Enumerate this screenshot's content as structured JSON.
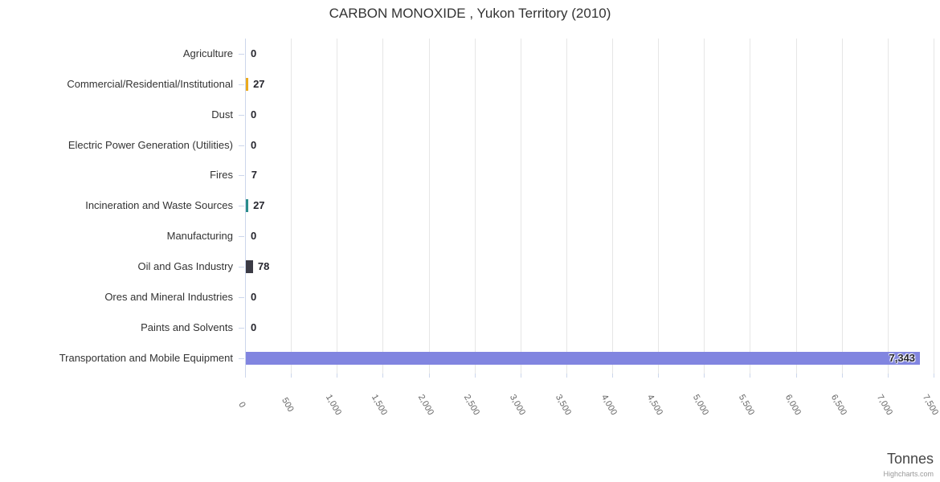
{
  "chart_data": {
    "type": "bar",
    "orientation": "horizontal",
    "title": "CARBON MONOXIDE , Yukon Territory (2010)",
    "categories": [
      "Agriculture",
      "Commercial/Residential/Institutional",
      "Dust",
      "Electric Power Generation (Utilities)",
      "Fires",
      "Incineration and Waste Sources",
      "Manufacturing",
      "Oil and Gas Industry",
      "Ores and Mineral Industries",
      "Paints and Solvents",
      "Transportation and Mobile Equipment"
    ],
    "values": [
      0,
      27,
      0,
      0,
      7,
      27,
      0,
      78,
      0,
      0,
      7343
    ],
    "value_labels": [
      "0",
      "27",
      "0",
      "0",
      "7",
      "27",
      "0",
      "78",
      "0",
      "0",
      "7,343"
    ],
    "bar_colors": [
      null,
      "#EBAA1E",
      null,
      null,
      null,
      "#2B8C8C",
      null,
      "#3B3B45",
      null,
      null,
      "#8185E0"
    ],
    "xlabel": "Tonnes",
    "xlim": [
      0,
      7500
    ],
    "tick_interval": 500,
    "x_tick_labels": [
      "0",
      "500",
      "1,000",
      "1,500",
      "2,000",
      "2,500",
      "3,000",
      "3,500",
      "4,000",
      "4,500",
      "5,000",
      "5,500",
      "6,000",
      "6,500",
      "7,000",
      "7,500"
    ],
    "grid": "on",
    "legend": "none",
    "credits": "Highcharts.com",
    "colors": {
      "background": "#ffffff",
      "gridline": "#e6e6e6",
      "axis_line": "#ccd6eb",
      "title_text": "#333333",
      "category_text": "#333333",
      "x_tick_text": "#666666",
      "value_text": "#26262e",
      "axis_title_text": "#454545",
      "credits_text": "#999999"
    }
  }
}
